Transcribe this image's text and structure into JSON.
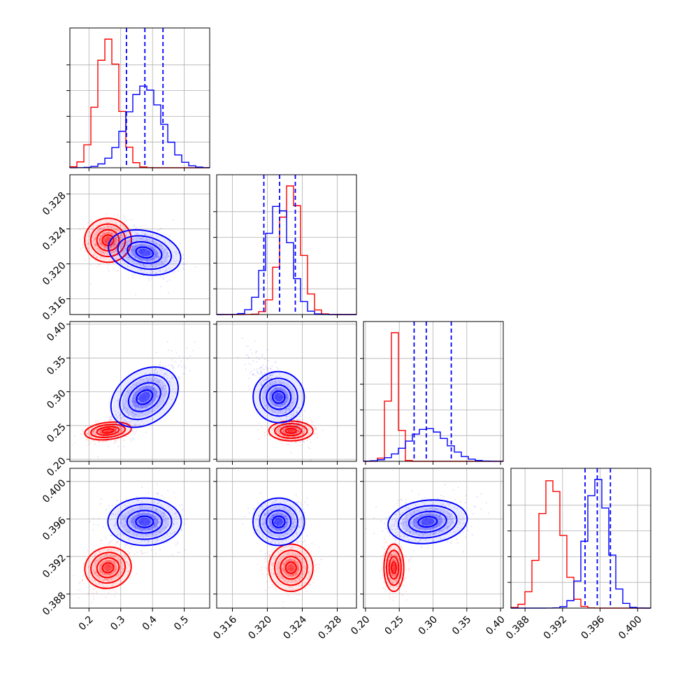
{
  "chart_data": {
    "type": "corner",
    "colors": {
      "series_a": "#ff0000",
      "series_b": "#0000ff"
    },
    "grid": true,
    "parameters": [
      {
        "range": [
          0.14,
          0.58
        ],
        "ticks": [
          0.2,
          0.3,
          0.4,
          0.5
        ],
        "tick_labels": [
          "0.2",
          "0.3",
          "0.4",
          "0.5"
        ]
      },
      {
        "range": [
          0.3142,
          0.3302
        ],
        "ticks": [
          0.316,
          0.32,
          0.324,
          0.328
        ],
        "tick_labels": [
          "0.316",
          "0.320",
          "0.324",
          "0.328"
        ]
      },
      {
        "range": [
          0.197,
          0.404
        ],
        "ticks": [
          0.2,
          0.25,
          0.3,
          0.35,
          0.4
        ],
        "tick_labels": [
          "0.20",
          "0.25",
          "0.30",
          "0.35",
          "0.40"
        ]
      },
      {
        "range": [
          0.3865,
          0.4014
        ],
        "ticks": [
          0.388,
          0.392,
          0.396,
          0.4
        ],
        "tick_labels": [
          "0.388",
          "0.392",
          "0.396",
          "0.400"
        ]
      }
    ],
    "series": [
      {
        "color": "#ff0000",
        "mean": [
          0.26,
          0.3227,
          0.242,
          0.3908
        ],
        "std": [
          0.035,
          0.0012,
          0.007,
          0.0012
        ]
      },
      {
        "color": "#0000ff",
        "mean": [
          0.375,
          0.3213,
          0.292,
          0.3957
        ],
        "std": [
          0.055,
          0.0014,
          0.028,
          0.0012
        ]
      }
    ],
    "quantiles_series_b": [
      [
        0.318,
        0.376,
        0.433
      ],
      [
        0.3196,
        0.3214,
        0.3232
      ],
      [
        0.272,
        0.29,
        0.327
      ],
      [
        0.3944,
        0.3957,
        0.3971
      ]
    ],
    "hist_bins": 20
  }
}
